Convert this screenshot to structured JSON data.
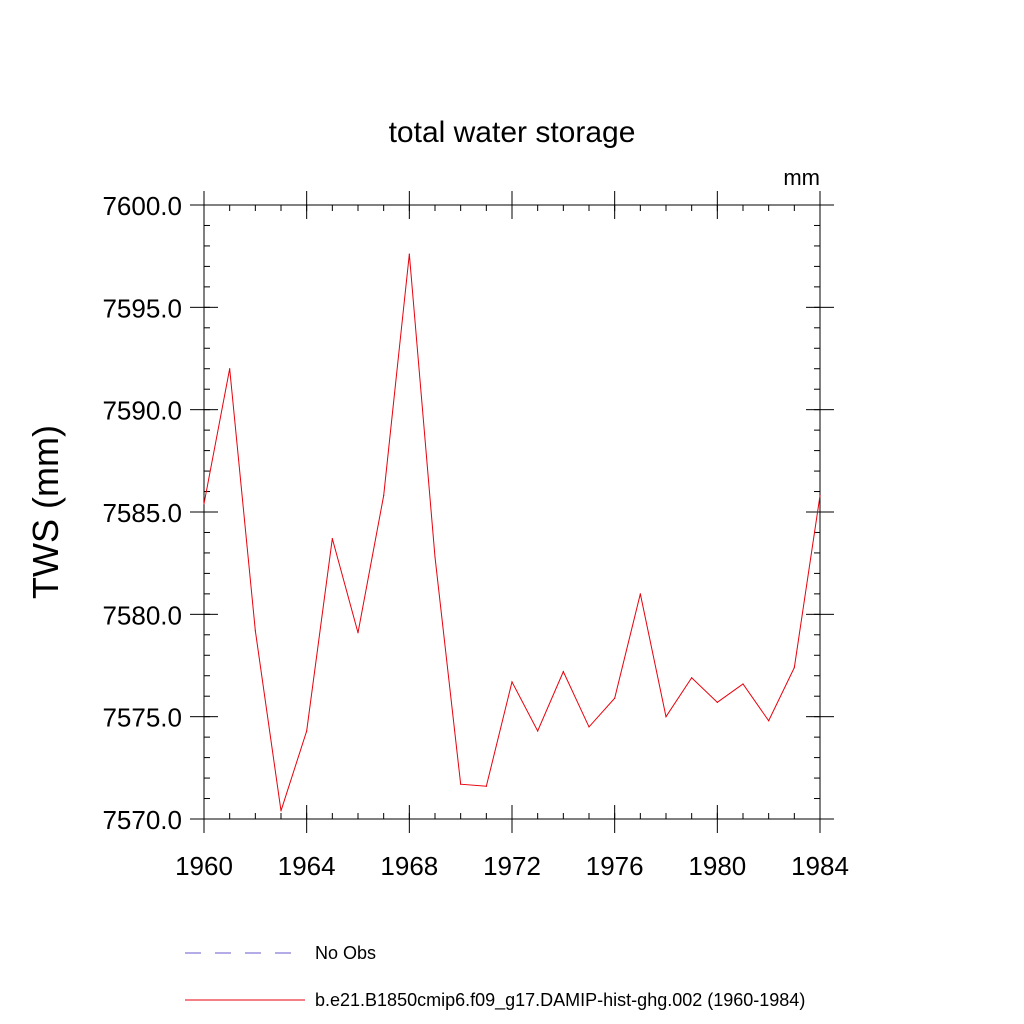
{
  "chart_data": {
    "type": "line",
    "title": "total water storage",
    "units_label": "mm",
    "ylabel": "TWS  (mm)",
    "xlabel": "",
    "xlim": [
      1960,
      1984
    ],
    "ylim": [
      7570.0,
      7600.0
    ],
    "x_ticks": [
      1960,
      1964,
      1968,
      1972,
      1976,
      1980,
      1984
    ],
    "x_tick_labels": [
      "1960",
      "1964",
      "1968",
      "1972",
      "1976",
      "1980",
      "1984"
    ],
    "y_ticks": [
      7570.0,
      7575.0,
      7580.0,
      7585.0,
      7590.0,
      7595.0,
      7600.0
    ],
    "y_tick_labels": [
      "7570.0",
      "7575.0",
      "7580.0",
      "7585.0",
      "7590.0",
      "7595.0",
      "7600.0"
    ],
    "grid": false,
    "legend_position": "bottom",
    "x": [
      1960,
      1961,
      1962,
      1963,
      1964,
      1965,
      1966,
      1967,
      1968,
      1969,
      1970,
      1971,
      1972,
      1973,
      1974,
      1975,
      1976,
      1977,
      1978,
      1979,
      1980,
      1981,
      1982,
      1983,
      1984
    ],
    "series": [
      {
        "name": "b.e21.B1850cmip6.f09_g17.DAMIP-hist-ghg.002 (1960-1984)",
        "color": "#e8000b",
        "style": "solid",
        "values": [
          7585.4,
          7592.0,
          7579.2,
          7570.4,
          7574.3,
          7583.7,
          7579.1,
          7585.8,
          7597.6,
          7582.8,
          7571.7,
          7571.6,
          7576.7,
          7574.3,
          7577.2,
          7574.5,
          7575.9,
          7581.0,
          7575.0,
          7576.9,
          7575.7,
          7576.6,
          7574.8,
          7577.4,
          7585.8
        ]
      }
    ],
    "legend_entries": [
      {
        "label": "No Obs",
        "color": "#6a5acd",
        "style": "dashed"
      },
      {
        "label": "b.e21.B1850cmip6.f09_g17.DAMIP-hist-ghg.002 (1960-1984)",
        "color": "#e8000b",
        "style": "solid"
      }
    ]
  }
}
